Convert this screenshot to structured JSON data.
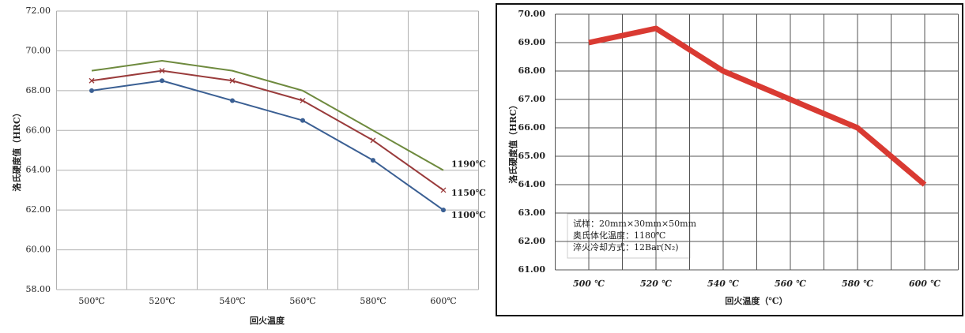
{
  "chart_data": [
    {
      "type": "line",
      "ylabel": "洛氏硬度值（HRC）",
      "xlabel": "回火温度",
      "categories": [
        "500℃",
        "520℃",
        "540℃",
        "560℃",
        "580℃",
        "600℃"
      ],
      "ylim": [
        58,
        72
      ],
      "yticks": [
        {
          "value": 58,
          "label": "58.00"
        },
        {
          "value": 60,
          "label": "60.00"
        },
        {
          "value": 62,
          "label": "62.00"
        },
        {
          "value": 64,
          "label": "64.00"
        },
        {
          "value": 66,
          "label": "66.00"
        },
        {
          "value": 68,
          "label": "68.00"
        },
        {
          "value": 70,
          "label": "70.00"
        },
        {
          "value": 72,
          "label": "72.00"
        }
      ],
      "grid": true,
      "series": [
        {
          "name": "1100℃",
          "color": "#3a5f93",
          "marker": "circle",
          "values": [
            68,
            68.5,
            67.5,
            66.5,
            64.5,
            62
          ]
        },
        {
          "name": "1150℃",
          "color": "#9a3b3b",
          "marker": "x",
          "values": [
            68.5,
            69,
            68.5,
            67.5,
            65.5,
            63
          ]
        },
        {
          "name": "1190℃",
          "color": "#6e8a3e",
          "marker": "none",
          "values": [
            69,
            69.5,
            69,
            68,
            66,
            64
          ]
        }
      ]
    },
    {
      "type": "line",
      "ylabel": "洛氏硬度值（HRC）",
      "xlabel": "回火温度（℃）",
      "categories": [
        "500 ℃",
        "520 ℃",
        "540 ℃",
        "560 ℃",
        "580 ℃",
        "600 ℃"
      ],
      "ylim": [
        61,
        70
      ],
      "yticks": [
        {
          "value": 61,
          "label": "61.00"
        },
        {
          "value": 62,
          "label": "62.00"
        },
        {
          "value": 63,
          "label": "63.00"
        },
        {
          "value": 64,
          "label": "64.00"
        },
        {
          "value": 65,
          "label": "65.00"
        },
        {
          "value": 66,
          "label": "66.00"
        },
        {
          "value": 67,
          "label": "67.00"
        },
        {
          "value": 68,
          "label": "68.00"
        },
        {
          "value": 69,
          "label": "69.00"
        },
        {
          "value": 70,
          "label": "70.00"
        }
      ],
      "grid": true,
      "annotation": [
        "试样：20mm×30mm×50mm",
        "奥氏体化温度：1180℃",
        "淬火冷却方式：12Bar(N₂)"
      ],
      "series": [
        {
          "name": "",
          "color": "#d93a32",
          "marker": "none",
          "values": [
            69,
            69.5,
            68,
            67,
            66,
            64
          ]
        }
      ]
    }
  ]
}
